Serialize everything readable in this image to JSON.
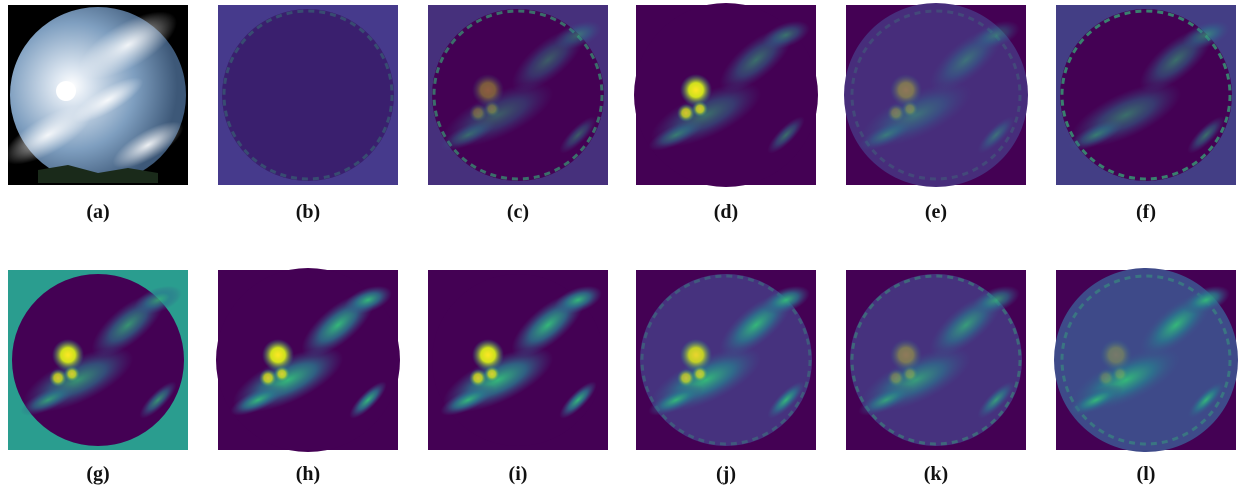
{
  "figure": {
    "panels": [
      {
        "label": "(a)"
      },
      {
        "label": "(b)"
      },
      {
        "label": "(c)"
      },
      {
        "label": "(d)"
      },
      {
        "label": "(e)"
      },
      {
        "label": "(f)"
      },
      {
        "label": "(g)"
      },
      {
        "label": "(h)"
      },
      {
        "label": "(i)"
      },
      {
        "label": "(j)"
      },
      {
        "label": "(k)"
      },
      {
        "label": "(l)"
      }
    ]
  }
}
